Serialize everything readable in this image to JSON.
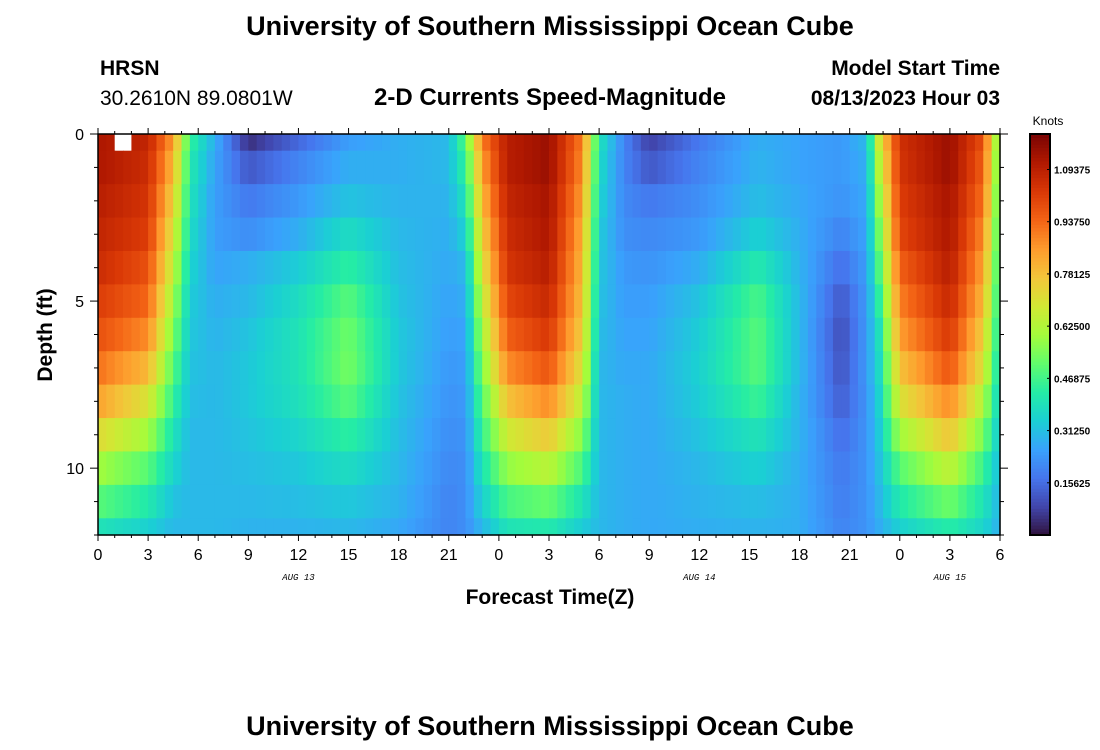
{
  "page": {
    "title_top": "University of Southern Mississippi Ocean Cube",
    "title_bottom": "University of Southern Mississippi Ocean Cube",
    "station_name": "HRSN",
    "station_coords": "30.2610N  89.0801W",
    "plot_title": "2-D Currents Speed-Magnitude",
    "model_start_label": "Model Start Time",
    "model_start_value": "08/13/2023 Hour 03"
  },
  "colors": {
    "colormap": [
      "#30123b",
      "#4145ab",
      "#4675ed",
      "#39a2fc",
      "#1bcfd4",
      "#24eca6",
      "#61fc6c",
      "#a4fc3b",
      "#d1e834",
      "#f3c63a",
      "#fe9b2d",
      "#f36315",
      "#d93806",
      "#b11901",
      "#7a0403"
    ]
  },
  "chart_data": {
    "type": "heatmap",
    "title": "2-D Currents Speed-Magnitude",
    "xlabel": "Forecast Time(Z)",
    "ylabel": "Depth (ft)",
    "xlim": [
      0,
      54
    ],
    "ylim": [
      12,
      0
    ],
    "x_ticks": [
      0,
      3,
      6,
      9,
      12,
      15,
      18,
      21,
      24,
      27,
      30,
      33,
      36,
      39,
      42,
      45,
      48,
      51,
      54
    ],
    "x_tick_labels": [
      "0",
      "3",
      "6",
      "9",
      "12",
      "15",
      "18",
      "21",
      "0",
      "3",
      "6",
      "9",
      "12",
      "15",
      "18",
      "21",
      "0",
      "3",
      "6"
    ],
    "y_ticks": [
      0,
      5,
      10
    ],
    "y_tick_labels": [
      "0",
      "5",
      "10"
    ],
    "date_labels": [
      {
        "x": 12,
        "text": "AUG 13"
      },
      {
        "x": 36,
        "text": "AUG 14"
      },
      {
        "x": 51,
        "text": "AUG 15"
      }
    ],
    "colorbar": {
      "unit": "Knots",
      "range": [
        0.0,
        1.2
      ],
      "tick_values": [
        0.15625,
        0.3125,
        0.46875,
        0.625,
        0.78125,
        0.9375,
        1.09375
      ],
      "tick_labels": [
        "0.15625",
        "0.31250",
        "0.46875",
        "0.62500",
        "0.78125",
        "0.93750",
        "1.09375"
      ]
    },
    "depth_rows": [
      0,
      1,
      2,
      3,
      4,
      5,
      6,
      7,
      8,
      9,
      10,
      11,
      12
    ],
    "speed_knots_by_hour": [
      [
        0,
        [
          1.12,
          1.12,
          1.1,
          1.08,
          1.06,
          1.02,
          0.98,
          0.92,
          0.84,
          0.72,
          0.6,
          0.5,
          0.4
        ]
      ],
      [
        3,
        [
          1.08,
          1.06,
          1.04,
          1.02,
          0.98,
          0.94,
          0.88,
          0.8,
          0.7,
          0.6,
          0.5,
          0.42,
          0.35
        ]
      ],
      [
        4.5,
        [
          0.85,
          0.8,
          0.75,
          0.7,
          0.65,
          0.6,
          0.55,
          0.5,
          0.45,
          0.4,
          0.36,
          0.32,
          0.3
        ]
      ],
      [
        5.5,
        [
          0.45,
          0.42,
          0.4,
          0.38,
          0.36,
          0.34,
          0.33,
          0.32,
          0.31,
          0.3,
          0.3,
          0.3,
          0.3
        ]
      ],
      [
        7,
        [
          0.28,
          0.26,
          0.25,
          0.25,
          0.26,
          0.28,
          0.29,
          0.3,
          0.3,
          0.3,
          0.3,
          0.3,
          0.3
        ]
      ],
      [
        9,
        [
          0.05,
          0.12,
          0.18,
          0.22,
          0.28,
          0.3,
          0.32,
          0.33,
          0.33,
          0.32,
          0.31,
          0.3,
          0.29
        ]
      ],
      [
        12,
        [
          0.15,
          0.2,
          0.24,
          0.28,
          0.34,
          0.38,
          0.4,
          0.4,
          0.39,
          0.36,
          0.33,
          0.31,
          0.29
        ]
      ],
      [
        15,
        [
          0.25,
          0.28,
          0.32,
          0.38,
          0.44,
          0.5,
          0.53,
          0.54,
          0.5,
          0.44,
          0.38,
          0.33,
          0.3
        ]
      ],
      [
        18,
        [
          0.28,
          0.28,
          0.29,
          0.3,
          0.31,
          0.32,
          0.33,
          0.33,
          0.32,
          0.31,
          0.3,
          0.29,
          0.27
        ]
      ],
      [
        21,
        [
          0.3,
          0.3,
          0.29,
          0.28,
          0.27,
          0.26,
          0.25,
          0.24,
          0.23,
          0.22,
          0.21,
          0.2,
          0.2
        ]
      ],
      [
        22,
        [
          0.5,
          0.45,
          0.4,
          0.35,
          0.3,
          0.28,
          0.26,
          0.25,
          0.24,
          0.23,
          0.22,
          0.22,
          0.22
        ]
      ],
      [
        23,
        [
          0.9,
          0.85,
          0.8,
          0.75,
          0.7,
          0.65,
          0.6,
          0.55,
          0.5,
          0.45,
          0.4,
          0.35,
          0.3
        ]
      ],
      [
        24.5,
        [
          1.1,
          1.1,
          1.08,
          1.06,
          1.04,
          1.0,
          0.95,
          0.88,
          0.78,
          0.68,
          0.58,
          0.48,
          0.4
        ]
      ],
      [
        27,
        [
          1.15,
          1.15,
          1.13,
          1.12,
          1.1,
          1.07,
          1.03,
          0.97,
          0.88,
          0.76,
          0.64,
          0.52,
          0.42
        ]
      ],
      [
        29,
        [
          0.9,
          0.88,
          0.85,
          0.82,
          0.8,
          0.78,
          0.75,
          0.7,
          0.64,
          0.56,
          0.48,
          0.4,
          0.34
        ]
      ],
      [
        30,
        [
          0.4,
          0.38,
          0.36,
          0.34,
          0.33,
          0.32,
          0.31,
          0.3,
          0.3,
          0.3,
          0.3,
          0.3,
          0.3
        ]
      ],
      [
        31.5,
        [
          0.2,
          0.2,
          0.21,
          0.22,
          0.24,
          0.25,
          0.26,
          0.27,
          0.28,
          0.28,
          0.28,
          0.28,
          0.28
        ]
      ],
      [
        33,
        [
          0.08,
          0.12,
          0.18,
          0.21,
          0.23,
          0.25,
          0.26,
          0.27,
          0.27,
          0.27,
          0.27,
          0.27,
          0.27
        ]
      ],
      [
        36,
        [
          0.18,
          0.2,
          0.22,
          0.24,
          0.28,
          0.32,
          0.34,
          0.35,
          0.34,
          0.32,
          0.3,
          0.29,
          0.28
        ]
      ],
      [
        39.5,
        [
          0.28,
          0.29,
          0.31,
          0.35,
          0.42,
          0.48,
          0.5,
          0.5,
          0.46,
          0.4,
          0.35,
          0.31,
          0.29
        ]
      ],
      [
        42,
        [
          0.26,
          0.26,
          0.27,
          0.28,
          0.29,
          0.3,
          0.3,
          0.3,
          0.29,
          0.29,
          0.28,
          0.28,
          0.28
        ]
      ],
      [
        44.5,
        [
          0.24,
          0.24,
          0.23,
          0.2,
          0.16,
          0.12,
          0.1,
          0.11,
          0.13,
          0.16,
          0.18,
          0.19,
          0.2
        ]
      ],
      [
        46,
        [
          0.3,
          0.28,
          0.27,
          0.26,
          0.25,
          0.24,
          0.24,
          0.24,
          0.23,
          0.23,
          0.23,
          0.23,
          0.23
        ]
      ],
      [
        46.8,
        [
          0.7,
          0.65,
          0.6,
          0.55,
          0.5,
          0.45,
          0.4,
          0.38,
          0.36,
          0.34,
          0.32,
          0.3,
          0.28
        ]
      ],
      [
        48,
        [
          1.05,
          1.04,
          1.02,
          1.0,
          0.95,
          0.9,
          0.85,
          0.78,
          0.7,
          0.6,
          0.5,
          0.42,
          0.35
        ]
      ],
      [
        51,
        [
          1.15,
          1.15,
          1.13,
          1.12,
          1.1,
          1.07,
          1.03,
          0.97,
          0.88,
          0.77,
          0.65,
          0.53,
          0.43
        ]
      ],
      [
        53,
        [
          0.98,
          0.95,
          0.92,
          0.88,
          0.84,
          0.8,
          0.75,
          0.7,
          0.62,
          0.54,
          0.46,
          0.4,
          0.36
        ]
      ],
      [
        54,
        [
          0.5,
          0.48,
          0.46,
          0.44,
          0.42,
          0.4,
          0.38,
          0.36,
          0.34,
          0.32,
          0.3,
          0.29,
          0.28
        ]
      ]
    ],
    "missing_cells": [
      {
        "hour": 1.5,
        "depth_row": 0
      }
    ]
  }
}
